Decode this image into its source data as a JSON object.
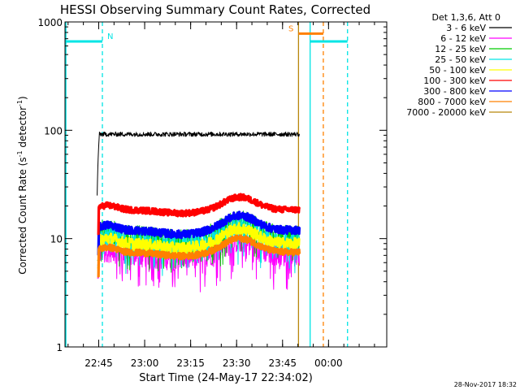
{
  "chart_data": {
    "type": "line",
    "title": "HESSI Observing Summary Count Rates, Corrected",
    "xlabel": "Start Time (24-May-17 22:34:02)",
    "ylabel_main": "Corrected Count Rate (s",
    "ylabel_sup1": "-1",
    "ylabel_mid": " detector",
    "ylabel_sup2": "-1",
    "ylabel_end": ")",
    "yscale": "log",
    "ylim": [
      1,
      1000
    ],
    "xlim_minutes_after_22_34": [
      0,
      105
    ],
    "xticks": [
      {
        "label": "22:45",
        "min": 11
      },
      {
        "label": "23:00",
        "min": 26
      },
      {
        "label": "23:15",
        "min": 41
      },
      {
        "label": "23:30",
        "min": 56
      },
      {
        "label": "23:45",
        "min": 71
      },
      {
        "label": "00:00",
        "min": 86
      }
    ],
    "yticks": [
      {
        "label": "1",
        "value": 1
      },
      {
        "label": "10",
        "value": 10
      },
      {
        "label": "100",
        "value": 100
      },
      {
        "label": "1000",
        "value": 1000
      }
    ],
    "legend_header": "Det 1,3,6, Att 0",
    "legend_position": "outside-right",
    "data_start_min": 10.5,
    "data_end_min": 76.5,
    "series": [
      {
        "name": "3 - 6 keV",
        "color": "#000000",
        "base": 92,
        "bump": 0.0,
        "noise": 0.03,
        "dash": false
      },
      {
        "name": "6 - 12 keV",
        "color": "#ff00ff",
        "base": 7.2,
        "bump": 0.9,
        "noise": 0.15,
        "dash": false
      },
      {
        "name": "12 - 25 keV",
        "color": "#00cc00",
        "base": 10.5,
        "bump": 1.0,
        "noise": 0.17,
        "dash": false
      },
      {
        "name": "25 - 50 keV",
        "color": "#00e5e5",
        "base": 9.5,
        "bump": 1.0,
        "noise": 0.15,
        "dash": false
      },
      {
        "name": "50 - 100 keV",
        "color": "#ffff00",
        "base": 9.0,
        "bump": 1.0,
        "noise": 0.08,
        "dash": false
      },
      {
        "name": "100 - 300 keV",
        "color": "#ff0000",
        "base": 18.5,
        "bump": 0.8,
        "noise": 0.04,
        "dash": false
      },
      {
        "name": "300 - 800 keV",
        "color": "#0000ff",
        "base": 12.0,
        "bump": 0.95,
        "noise": 0.05,
        "dash": false
      },
      {
        "name": "800 - 7000 keV",
        "color": "#ff8000",
        "base": 7.5,
        "bump": 0.9,
        "noise": 0.04,
        "dash": false
      },
      {
        "name": "7000 - 20000 keV",
        "color": "#b8860b",
        "base": 0,
        "bump": 0,
        "noise": 0,
        "dash": false
      }
    ],
    "markers": [
      {
        "name": "N",
        "color": "#00e5e5",
        "start_min": 0.3,
        "end_min": 12.2,
        "level": 660,
        "label_pos": "end"
      },
      {
        "name": "S",
        "color": "#ff8000",
        "start_min": 76.2,
        "end_min": 84.3,
        "level": 780,
        "label_pos": "start"
      },
      {
        "name": "",
        "color": "#00e5e5",
        "start_min": 80.0,
        "end_min": 92.2,
        "level": 660,
        "label_pos": "none"
      }
    ],
    "vlines": [
      {
        "color": "#00e5e5",
        "min": 0.3,
        "dashed": false
      },
      {
        "color": "#00e5e5",
        "min": 12.2,
        "dashed": true
      },
      {
        "color": "#b8860b",
        "min": 76.2,
        "dashed": false
      },
      {
        "color": "#00e5e5",
        "min": 80.0,
        "dashed": false
      },
      {
        "color": "#ff8000",
        "min": 84.3,
        "dashed": true
      },
      {
        "color": "#00e5e5",
        "min": 92.2,
        "dashed": true
      }
    ],
    "footer_timestamp": "28-Nov-2017 18:32"
  }
}
